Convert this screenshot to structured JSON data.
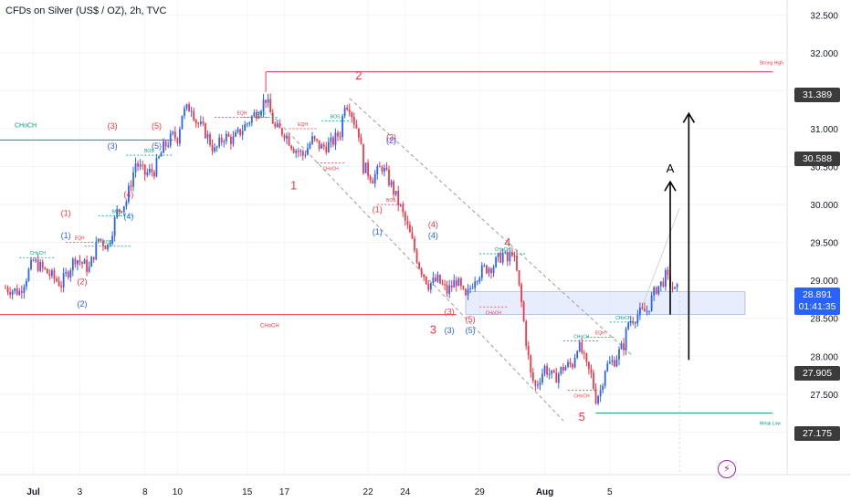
{
  "header": {
    "title": "CFDs on Silver (US$ / OZ), 2h, TVC"
  },
  "price_tags": {
    "high_tag": "31.389",
    "mid_tag": "30.588",
    "last_price": "28.891",
    "countdown": "01:41:35",
    "low_tag1": "27.905",
    "low_tag2": "27.175"
  },
  "colors": {
    "up": "#2962ff",
    "down": "#f23645",
    "choch_green": "#089981",
    "red_level": "#f23645",
    "zone": "#c9d8fb"
  },
  "icons": {
    "flash": "lightning-icon"
  },
  "chart_data": {
    "type": "candlestick",
    "title": "CFDs on Silver (US$ / OZ), 2h, TVC",
    "y_axis": {
      "ticks": [
        "32.500",
        "32.000",
        "31.500",
        "31.000",
        "30.500",
        "30.000",
        "29.500",
        "29.000",
        "28.500",
        "28.000",
        "27.500",
        "27.000"
      ],
      "range": [
        26.8,
        32.6
      ]
    },
    "x_axis": {
      "ticks": [
        "Jul",
        "3",
        "8",
        "10",
        "15",
        "17",
        "22",
        "24",
        "29",
        "Aug",
        "5"
      ]
    },
    "price_path": [
      [
        0,
        28.9
      ],
      [
        3,
        28.85
      ],
      [
        6,
        29.25
      ],
      [
        9,
        29.1
      ],
      [
        12,
        28.95
      ],
      [
        15,
        29.3
      ],
      [
        18,
        29.15
      ],
      [
        20,
        29.55
      ],
      [
        22,
        29.45
      ],
      [
        24,
        29.9
      ],
      [
        26,
        30.05
      ],
      [
        28,
        30.55
      ],
      [
        30,
        30.4
      ],
      [
        32,
        30.45
      ],
      [
        34,
        30.75
      ],
      [
        36,
        30.9
      ],
      [
        37,
        30.88
      ],
      [
        38,
        31.2
      ],
      [
        40,
        31.3
      ],
      [
        41,
        31.1
      ],
      [
        43,
        30.95
      ],
      [
        45,
        30.7
      ],
      [
        47,
        30.9
      ],
      [
        49,
        30.85
      ],
      [
        51,
        31.0
      ],
      [
        53,
        31.15
      ],
      [
        55,
        31.3
      ],
      [
        56,
        31.4
      ],
      [
        57,
        31.2
      ],
      [
        58,
        31.0
      ],
      [
        60,
        30.95
      ],
      [
        62,
        30.75
      ],
      [
        64,
        30.65
      ],
      [
        66,
        30.85
      ],
      [
        68,
        30.75
      ],
      [
        70,
        30.8
      ],
      [
        72,
        30.95
      ],
      [
        73,
        31.35
      ],
      [
        74,
        31.3
      ],
      [
        75,
        31.1
      ],
      [
        76,
        30.95
      ],
      [
        77,
        30.5
      ],
      [
        79,
        30.35
      ],
      [
        81,
        30.5
      ],
      [
        83,
        30.25
      ],
      [
        85,
        29.95
      ],
      [
        87,
        29.6
      ],
      [
        89,
        29.2
      ],
      [
        91,
        28.95
      ],
      [
        93,
        29.0
      ],
      [
        95,
        28.85
      ],
      [
        97,
        29.0
      ],
      [
        99,
        28.75
      ],
      [
        101,
        29.05
      ],
      [
        103,
        29.15
      ],
      [
        105,
        29.2
      ],
      [
        107,
        29.35
      ],
      [
        108,
        29.25
      ],
      [
        109,
        29.4
      ],
      [
        110,
        29.1
      ],
      [
        111,
        28.7
      ],
      [
        112,
        28.2
      ],
      [
        113,
        27.75
      ],
      [
        114,
        27.6
      ],
      [
        116,
        27.85
      ],
      [
        118,
        27.7
      ],
      [
        120,
        27.85
      ],
      [
        122,
        27.9
      ],
      [
        123,
        28.15
      ],
      [
        124,
        28.05
      ],
      [
        125,
        27.85
      ],
      [
        126,
        27.75
      ],
      [
        127,
        27.45
      ],
      [
        128,
        27.55
      ],
      [
        129,
        27.85
      ],
      [
        131,
        27.95
      ],
      [
        133,
        28.15
      ],
      [
        134,
        28.45
      ],
      [
        136,
        28.55
      ],
      [
        138,
        28.6
      ],
      [
        140,
        28.9
      ],
      [
        141,
        28.95
      ],
      [
        142,
        29.05
      ],
      [
        143,
        28.95
      ],
      [
        144,
        28.85
      ],
      [
        145,
        28.89
      ]
    ],
    "levels": {
      "strong_high": 31.75,
      "choch_left": 30.85,
      "choch_red": 28.55,
      "weak_low": 27.25
    },
    "zone": [
      28.55,
      28.85
    ],
    "labels": {
      "strong_high": "Strong High",
      "weak_low": "Weak Low",
      "choch": "CHoCH",
      "bos": "BOS",
      "eqh": "EQH",
      "letter_a": "A"
    },
    "wave_labels_red": [
      "1",
      "2",
      "3",
      "4",
      "5"
    ],
    "wave_labels_small": [
      "(1)",
      "(2)",
      "(3)",
      "(4)",
      "(5)"
    ]
  }
}
